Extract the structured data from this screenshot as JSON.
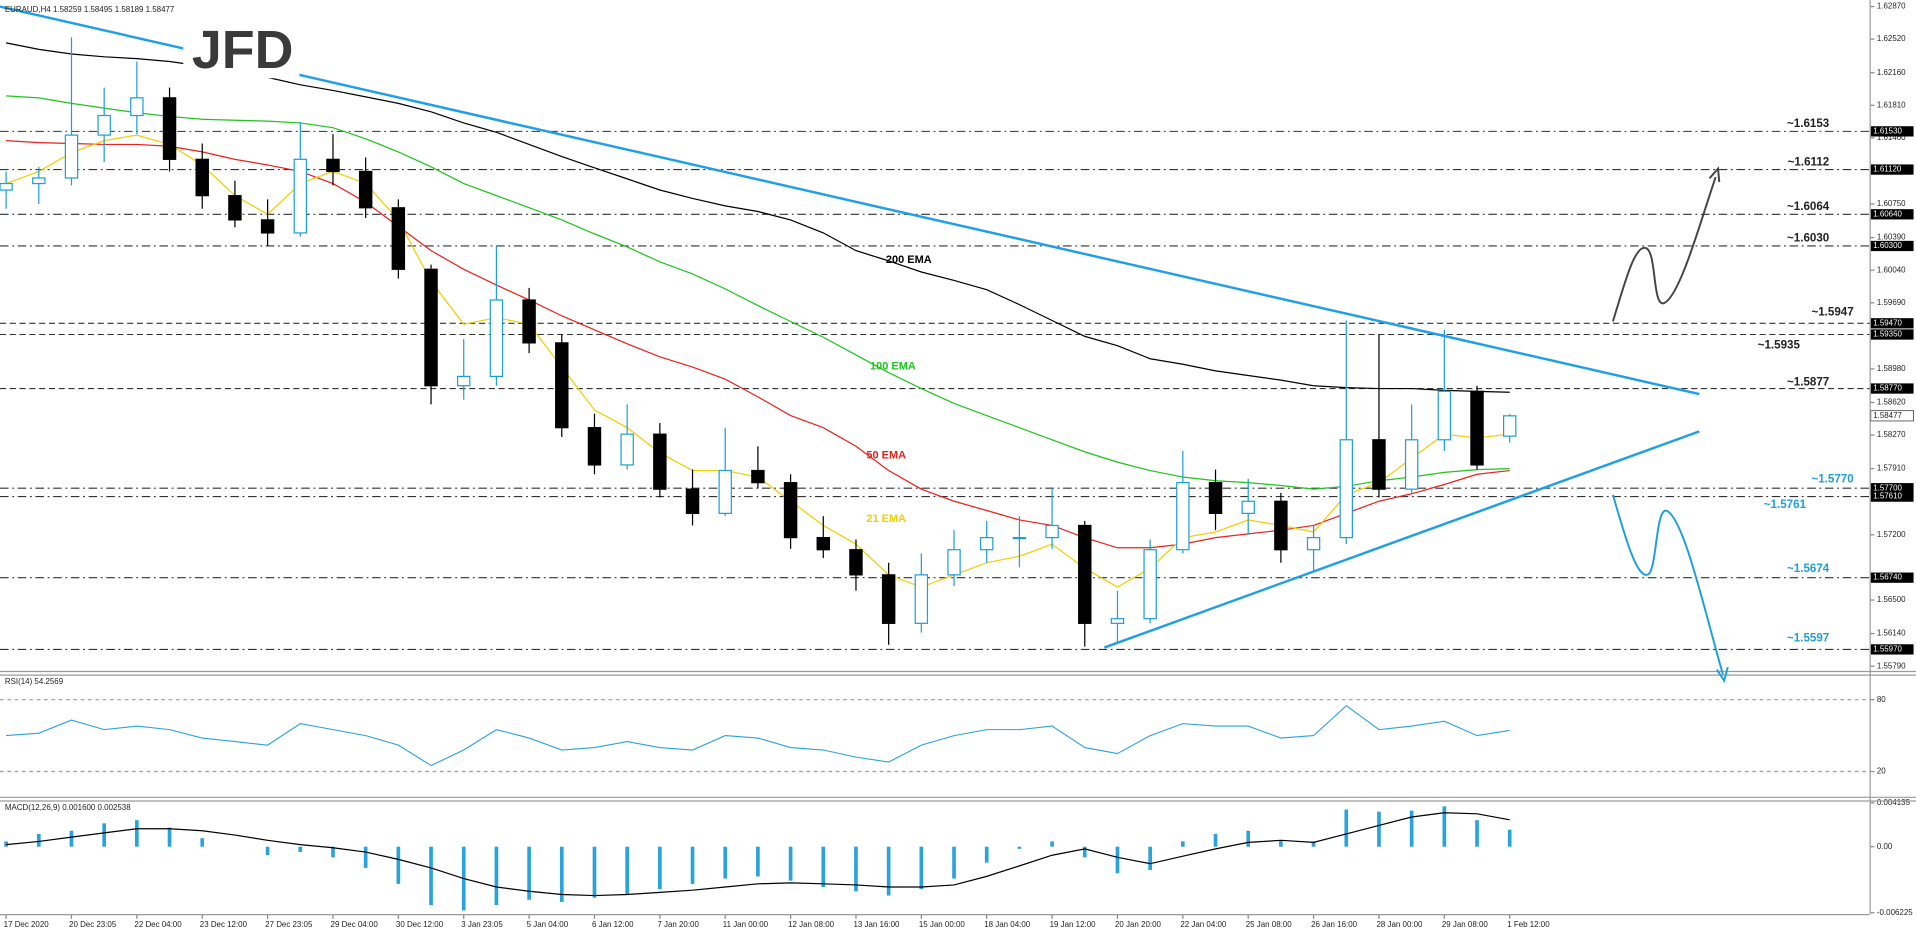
{
  "logo": "JFD",
  "chart_data": [
    {
      "type": "candlestick",
      "title": "EURAUD,H4  1.58259 1.58495 1.58189 1.58477",
      "categories": [
        "17 Dec 2020",
        null,
        "20 Dec 23:05",
        null,
        "22 Dec 04:00",
        null,
        "23 Dec 12:00",
        null,
        "27 Dec 23:05",
        null,
        "29 Dec 04:00",
        null,
        "30 Dec 12:00",
        null,
        "3 Jan 23:05",
        null,
        "5 Jan 04:00",
        null,
        "6 Jan 12:00",
        null,
        "7 Jan 20:00",
        null,
        "11 Jan 00:00",
        null,
        "12 Jan 08:00",
        null,
        "13 Jan 16:00",
        null,
        "15 Jan 00:00",
        null,
        "18 Jan 04:00",
        null,
        "19 Jan 12:00",
        null,
        "20 Jan 20:00",
        null,
        "22 Jan 04:00",
        null,
        "25 Jan 08:00",
        null,
        "26 Jan 16:00",
        null,
        "28 Jan 00:00",
        null,
        "29 Jan 08:00",
        null,
        "1 Feb 12:00"
      ],
      "open": [
        1.609,
        1.6097,
        1.6103,
        1.6149,
        1.617,
        1.6189,
        1.6123,
        1.6084,
        1.6058,
        1.6044,
        1.6123,
        1.611,
        1.6071,
        1.6005,
        1.588,
        1.589,
        1.5972,
        1.5926,
        1.5835,
        1.5795,
        1.5828,
        1.5769,
        1.5743,
        1.5789,
        1.5776,
        1.5717,
        1.5704,
        1.5677,
        1.5625,
        1.5677,
        1.5704,
        1.5717,
        1.5717,
        1.573,
        1.5625,
        1.563,
        1.5704,
        1.5776,
        1.5743,
        1.5756,
        1.5704,
        1.5717,
        1.5822,
        1.5769,
        1.5822,
        1.5874,
        1.58259
      ],
      "high": [
        1.611,
        1.6115,
        1.6254,
        1.62,
        1.6228,
        1.62,
        1.614,
        1.61,
        1.608,
        1.6163,
        1.615,
        1.6125,
        1.608,
        1.601,
        1.593,
        1.603,
        1.5985,
        1.5935,
        1.585,
        1.586,
        1.584,
        1.579,
        1.5835,
        1.5815,
        1.5785,
        1.574,
        1.5715,
        1.569,
        1.57,
        1.5725,
        1.5735,
        1.574,
        1.577,
        1.5735,
        1.566,
        1.5715,
        1.581,
        1.579,
        1.578,
        1.5765,
        1.573,
        1.595,
        1.5935,
        1.586,
        1.594,
        1.588,
        1.58495
      ],
      "low": [
        1.607,
        1.6075,
        1.6095,
        1.612,
        1.615,
        1.611,
        1.607,
        1.605,
        1.603,
        1.604,
        1.6095,
        1.606,
        1.5995,
        1.586,
        1.5865,
        1.588,
        1.5915,
        1.5825,
        1.5785,
        1.579,
        1.576,
        1.573,
        1.574,
        1.577,
        1.5705,
        1.5695,
        1.566,
        1.5602,
        1.5615,
        1.5665,
        1.569,
        1.5685,
        1.5705,
        1.56,
        1.5605,
        1.5625,
        1.57,
        1.5725,
        1.572,
        1.569,
        1.568,
        1.571,
        1.576,
        1.5765,
        1.581,
        1.579,
        1.58189
      ],
      "close": [
        1.6097,
        1.6103,
        1.6149,
        1.617,
        1.6189,
        1.6123,
        1.6084,
        1.6058,
        1.6044,
        1.6123,
        1.611,
        1.6071,
        1.6005,
        1.588,
        1.589,
        1.5972,
        1.5926,
        1.5835,
        1.5795,
        1.5828,
        1.5769,
        1.5743,
        1.5789,
        1.5776,
        1.5717,
        1.5704,
        1.5677,
        1.5625,
        1.5677,
        1.5704,
        1.5717,
        1.5717,
        1.573,
        1.5625,
        1.563,
        1.5704,
        1.5776,
        1.5743,
        1.5756,
        1.5704,
        1.5717,
        1.5822,
        1.5769,
        1.5822,
        1.5874,
        1.5795,
        1.58477
      ],
      "up_color": "#1e9fd8",
      "down_color": "#000000",
      "series": [
        {
          "name": "200 EMA",
          "color": "#000000",
          "values": [
            1.6248,
            1.6241,
            1.6236,
            1.6233,
            1.6231,
            1.6228,
            1.6223,
            1.6218,
            1.6211,
            1.6203,
            1.6197,
            1.619,
            1.6183,
            1.6174,
            1.6162,
            1.6152,
            1.6139,
            1.6126,
            1.6114,
            1.6102,
            1.609,
            1.6081,
            1.6073,
            1.6067,
            1.6058,
            1.6044,
            1.6025,
            1.6014,
            1.6002,
            1.5993,
            1.5983,
            1.5967,
            1.595,
            1.5933,
            1.5923,
            1.5909,
            1.5903,
            1.5896,
            1.5891,
            1.5886,
            1.588,
            1.5878,
            1.5877,
            1.5877,
            1.5875,
            1.5874,
            1.5873
          ]
        },
        {
          "name": "100 EMA",
          "color": "#1fc41f",
          "values": [
            1.6191,
            1.6189,
            1.6183,
            1.6178,
            1.6173,
            1.6169,
            1.6166,
            1.6165,
            1.6164,
            1.6162,
            1.6157,
            1.6145,
            1.6131,
            1.6115,
            1.6097,
            1.6084,
            1.6071,
            1.6058,
            1.6043,
            1.6029,
            1.6013,
            1.6,
            1.5984,
            1.5966,
            1.5949,
            1.5932,
            1.5913,
            1.5894,
            1.5877,
            1.5861,
            1.5848,
            1.5835,
            1.5822,
            1.5809,
            1.5798,
            1.5789,
            1.5782,
            1.5778,
            1.5776,
            1.5773,
            1.5769,
            1.5772,
            1.5778,
            1.5782,
            1.5787,
            1.579,
            1.5791
          ]
        },
        {
          "name": "50 EMA",
          "color": "#e8221e",
          "values": [
            1.6143,
            1.6141,
            1.614,
            1.6139,
            1.6139,
            1.6137,
            1.6131,
            1.6123,
            1.6117,
            1.611,
            1.6097,
            1.6077,
            1.6051,
            1.6025,
            1.6005,
            1.5988,
            1.5972,
            1.5955,
            1.594,
            1.5925,
            1.5911,
            1.59,
            1.5887,
            1.5868,
            1.5848,
            1.5835,
            1.5815,
            1.5789,
            1.5769,
            1.5756,
            1.5746,
            1.5736,
            1.573,
            1.5717,
            1.5706,
            1.5706,
            1.571,
            1.5717,
            1.5721,
            1.5725,
            1.573,
            1.5743,
            1.5756,
            1.5764,
            1.5774,
            1.5785,
            1.5789
          ]
        },
        {
          "name": "21 EMA",
          "color": "#f2cf00",
          "values": [
            1.6097,
            1.611,
            1.613,
            1.6143,
            1.6149,
            1.6139,
            1.6117,
            1.6084,
            1.6064,
            1.6097,
            1.611,
            1.6097,
            1.6058,
            1.5992,
            1.5946,
            1.5953,
            1.5946,
            1.59,
            1.5854,
            1.5835,
            1.5808,
            1.5789,
            1.5789,
            1.5782,
            1.5756,
            1.573,
            1.571,
            1.5677,
            1.5664,
            1.5677,
            1.569,
            1.5697,
            1.571,
            1.5684,
            1.5664,
            1.5684,
            1.5717,
            1.5723,
            1.5736,
            1.573,
            1.5723,
            1.5763,
            1.5776,
            1.5802,
            1.5828,
            1.5824,
            1.5828
          ]
        }
      ],
      "ylim": [
        1.5574,
        1.6294
      ],
      "yticks": [
        {
          "value": 1.6287,
          "label": "1.62870"
        },
        {
          "value": 1.6252,
          "label": "1.62520"
        },
        {
          "value": 1.6216,
          "label": "1.62160"
        },
        {
          "value": 1.6181,
          "label": "1.61810"
        },
        {
          "value": 1.6146,
          "label": "1.61460"
        },
        {
          "value": 1.6075,
          "label": "1.60750"
        },
        {
          "value": 1.6039,
          "label": "1.60390"
        },
        {
          "value": 1.6004,
          "label": "1.60040"
        },
        {
          "value": 1.5969,
          "label": "1.59690"
        },
        {
          "value": 1.5898,
          "label": "1.58980"
        },
        {
          "value": 1.5862,
          "label": "1.58620"
        },
        {
          "value": 1.5827,
          "label": "1.58270"
        },
        {
          "value": 1.5791,
          "label": "1.57910"
        },
        {
          "value": 1.572,
          "label": "1.57200"
        },
        {
          "value": 1.565,
          "label": "1.56500"
        },
        {
          "value": 1.5614,
          "label": "1.56140"
        },
        {
          "value": 1.5579,
          "label": "1.55790"
        }
      ],
      "levels": [
        {
          "value": 1.6153,
          "label": "1.61530",
          "note": "~1.6153",
          "dash": "dashdot",
          "color": "#222222"
        },
        {
          "value": 1.6112,
          "label": "1.61120",
          "note": "~1.6112",
          "dash": "dashdot",
          "color": "#222222"
        },
        {
          "value": 1.6064,
          "label": "1.60640",
          "note": "~1.6064",
          "dash": "dashdot",
          "color": "#222222"
        },
        {
          "value": 1.603,
          "label": "1.60300",
          "note": "~1.6030",
          "dash": "dashdot",
          "color": "#222222"
        },
        {
          "value": 1.5947,
          "label": "1.59470",
          "note": "~1.5947",
          "dash": "dashed",
          "color": "#222222"
        },
        {
          "value": 1.5935,
          "label": "1.59350",
          "note": "~1.5935",
          "dash": "dashed",
          "color": "#222222"
        },
        {
          "value": 1.5877,
          "label": "1.58770",
          "note": "~1.5877",
          "dash": "dashed",
          "color": "#222222"
        },
        {
          "value": 1.577,
          "label": "1.57700",
          "note": "~1.5770",
          "dash": "dashdot",
          "color": "#1e9fd8"
        },
        {
          "value": 1.5761,
          "label": "1.57610",
          "note": "~1.5761",
          "dash": "dashdot",
          "color": "#1e9fd8"
        },
        {
          "value": 1.5674,
          "label": "1.56740",
          "note": "~1.5674",
          "dash": "dashdot",
          "color": "#1e9fd8"
        },
        {
          "value": 1.5597,
          "label": "1.55970",
          "note": "~1.5597",
          "dash": "dashdot",
          "color": "#1e9fd8"
        }
      ],
      "current": {
        "value": 1.58477,
        "label": "1.58477"
      },
      "trendlines": [
        {
          "x": [
            -0.2,
            51.8
          ],
          "y": [
            1.6287,
            1.5871
          ],
          "color": "#1e9fe6"
        },
        {
          "x": [
            33.6,
            51.8
          ],
          "y": [
            1.5599,
            1.5831
          ],
          "color": "#1e9fe6"
        }
      ]
    },
    {
      "type": "line",
      "title": "RSI(14) 54.2569",
      "color": "#29a3dc",
      "values": [
        50,
        52,
        63,
        55,
        58,
        55,
        48,
        45,
        42,
        60,
        55,
        50,
        42,
        25,
        38,
        55,
        48,
        38,
        40,
        45,
        40,
        38,
        50,
        48,
        40,
        38,
        32,
        28,
        42,
        50,
        55,
        55,
        58,
        40,
        35,
        50,
        60,
        58,
        58,
        48,
        50,
        75,
        55,
        58,
        62,
        50,
        54.2569
      ],
      "ylim": [
        0,
        100
      ],
      "yticks": [
        80,
        20
      ],
      "grid": true
    },
    {
      "type": "macd",
      "title": "MACD(12,26,9) 0.001600 0.002538",
      "color": "#29a3dc",
      "signal_color": "#000000",
      "values": [
        0.0005,
        0.0012,
        0.0015,
        0.0022,
        0.0025,
        0.0018,
        0.0008,
        0,
        -0.0008,
        -0.0005,
        -0.001,
        -0.002,
        -0.0035,
        -0.0055,
        -0.006,
        -0.0055,
        -0.005,
        -0.0052,
        -0.0048,
        -0.0045,
        -0.004,
        -0.0035,
        -0.003,
        -0.0028,
        -0.0032,
        -0.0038,
        -0.0042,
        -0.0046,
        -0.004,
        -0.003,
        -0.0015,
        -0.0002,
        0.0005,
        -0.001,
        -0.0025,
        -0.0022,
        0.0005,
        0.0012,
        0.0015,
        0.0006,
        0.0005,
        0.0035,
        0.0033,
        0.0034,
        0.0038,
        0.0025,
        0.0016
      ],
      "signal": [
        0.0002,
        0.0005,
        0.0009,
        0.0013,
        0.0017,
        0.0017,
        0.0015,
        0.0011,
        0.0006,
        0.0002,
        -0.0001,
        -0.0005,
        -0.0012,
        -0.002,
        -0.003,
        -0.0038,
        -0.0042,
        -0.0045,
        -0.0046,
        -0.0045,
        -0.0043,
        -0.0041,
        -0.0038,
        -0.0035,
        -0.0034,
        -0.0035,
        -0.0036,
        -0.0038,
        -0.0038,
        -0.0036,
        -0.0028,
        -0.0018,
        -0.0008,
        -0.0002,
        -0.001,
        -0.0016,
        -0.0009,
        -0.0002,
        0.0004,
        0.0006,
        0.0004,
        0.0012,
        0.002,
        0.0028,
        0.0032,
        0.0031,
        0.002538
      ],
      "ylim": [
        -0.006225,
        0.004135
      ],
      "yticks": [
        0.004135,
        {
          "value": 0,
          "label": "0.00"
        },
        -0.006225
      ]
    }
  ]
}
